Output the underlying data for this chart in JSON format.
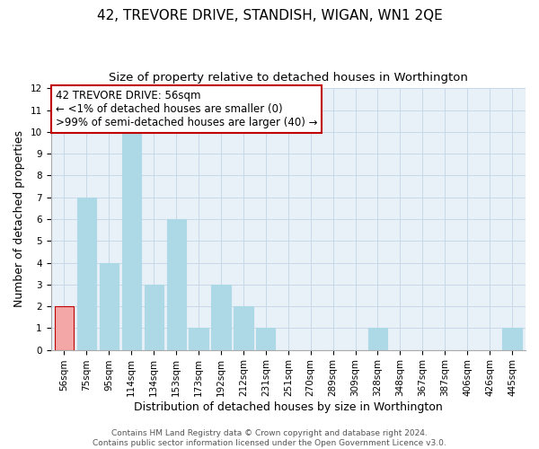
{
  "title": "42, TREVORE DRIVE, STANDISH, WIGAN, WN1 2QE",
  "subtitle": "Size of property relative to detached houses in Worthington",
  "xlabel": "Distribution of detached houses by size in Worthington",
  "ylabel": "Number of detached properties",
  "categories": [
    "56sqm",
    "75sqm",
    "95sqm",
    "114sqm",
    "134sqm",
    "153sqm",
    "173sqm",
    "192sqm",
    "212sqm",
    "231sqm",
    "251sqm",
    "270sqm",
    "289sqm",
    "309sqm",
    "328sqm",
    "348sqm",
    "367sqm",
    "387sqm",
    "406sqm",
    "426sqm",
    "445sqm"
  ],
  "values": [
    2,
    7,
    4,
    10,
    3,
    6,
    1,
    3,
    2,
    1,
    0,
    0,
    0,
    0,
    1,
    0,
    0,
    0,
    0,
    0,
    1
  ],
  "bar_color_highlight": "#f4a7a7",
  "bar_color_normal": "#add8e6",
  "bar_edge_highlight": "#c00000",
  "bar_edge_normal": "#add8e6",
  "highlight_index": 0,
  "ylim": [
    0,
    12
  ],
  "yticks": [
    0,
    1,
    2,
    3,
    4,
    5,
    6,
    7,
    8,
    9,
    10,
    11,
    12
  ],
  "annotation_title": "42 TREVORE DRIVE: 56sqm",
  "annotation_line1": "← <1% of detached houses are smaller (0)",
  "annotation_line2": ">99% of semi-detached houses are larger (40) →",
  "footer1": "Contains HM Land Registry data © Crown copyright and database right 2024.",
  "footer2": "Contains public sector information licensed under the Open Government Licence v3.0.",
  "title_fontsize": 11,
  "subtitle_fontsize": 9.5,
  "axis_label_fontsize": 9,
  "tick_fontsize": 7.5,
  "annotation_fontsize": 8.5,
  "footer_fontsize": 6.5,
  "grid_color": "#c8d8e8",
  "background_color": "#e8f0f8"
}
